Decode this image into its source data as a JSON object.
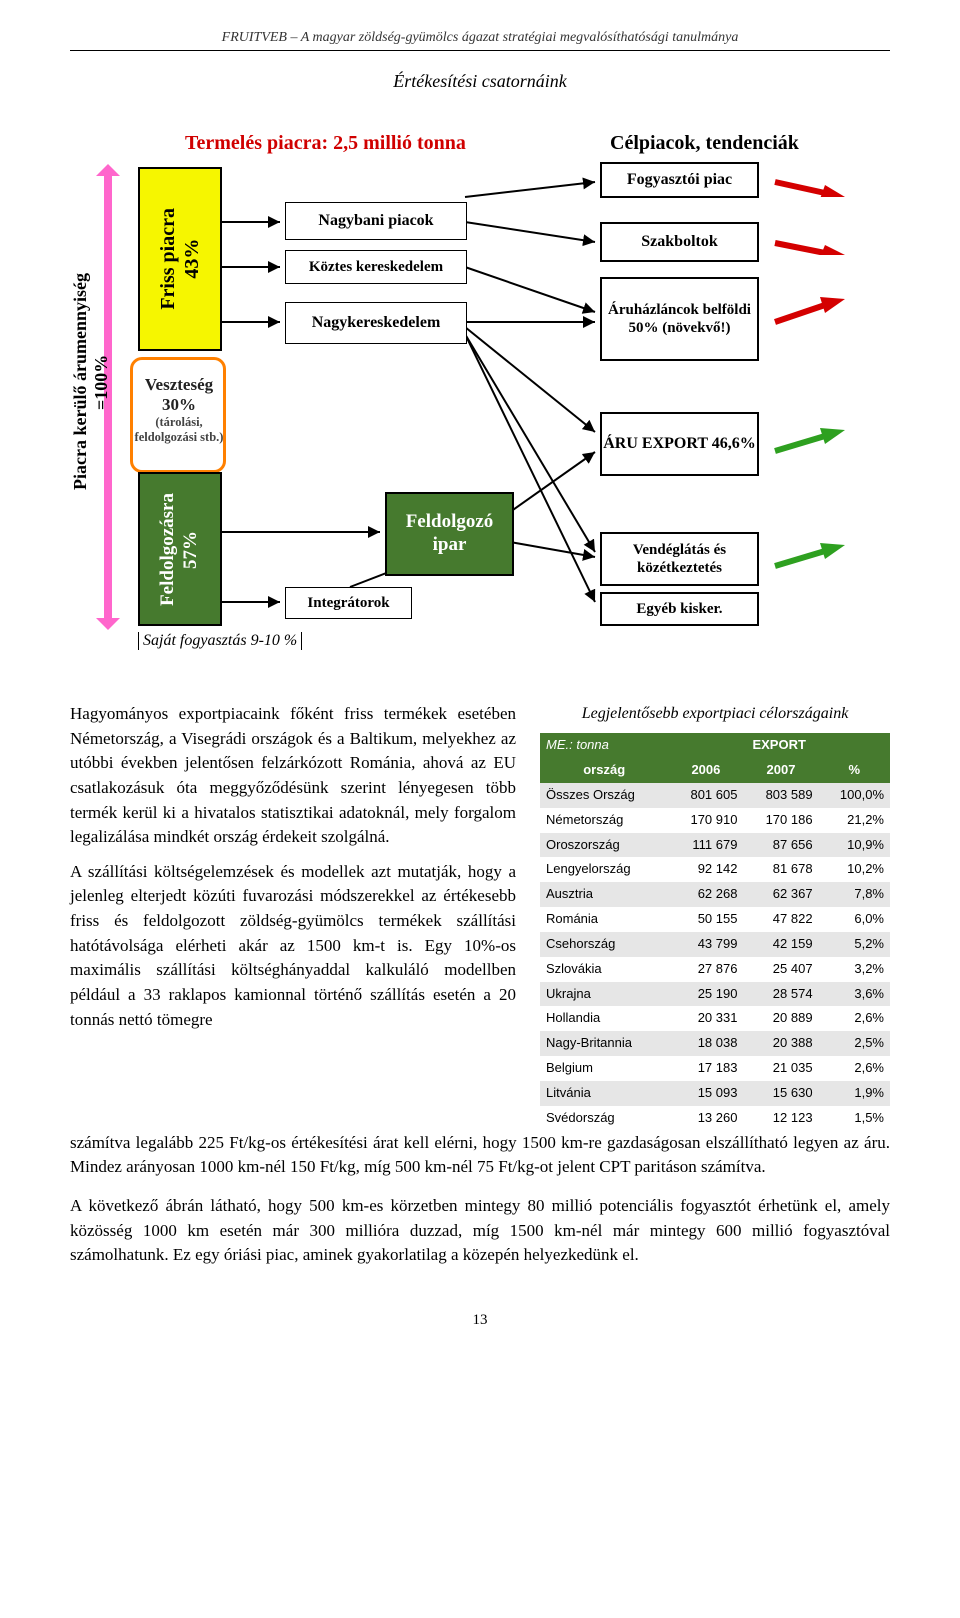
{
  "header": "FRUITVEB – A magyar zöldség-gyümölcs ágazat stratégiai megvalósíthatósági tanulmánya",
  "subtitle": "Értékesítési csatornáink",
  "diagram": {
    "prod_title": "Termelés piacra: 2,5 millió tonna",
    "cel_title": "Célpiacok, tendenciák",
    "piacra_100": "Piacra kerülő árumennyiség =100%",
    "friss_piacra": "Friss piacra",
    "friss_pct": "43%",
    "veszteseg": "Veszteség",
    "veszteseg_pct": "30%",
    "veszteseg_detail": "(tárolási, feldolgozási stb.)",
    "feldolg": "Feldolgozásra",
    "feldolg_pct": "57%",
    "sajat": "Saját fogyasztás 9-10 %",
    "nagybani": "Nagybani piacok",
    "koztes": "Köztes kereskedelem",
    "nagyker": "Nagykereskedelem",
    "feldolgozo": "Feldolgozó ipar",
    "integratorok": "Integrátorok",
    "fogyasztoi": "Fogyasztói piac",
    "szakboltok": "Szakboltok",
    "aruhaz": "Áruházláncok belföldi 50% (növekvő!)",
    "aruexport": "ÁRU EXPORT 46,6%",
    "vendeglatas": "Vendéglátás és közétkeztetés",
    "egyeb": "Egyéb kisker.",
    "arrow_colors": {
      "red": "#d40000",
      "green": "#2ea020"
    }
  },
  "export_caption": "Legjelentősebb exportpiaci célországaink",
  "export_table": {
    "unit": "ME.: tonna",
    "export_head": "EXPORT",
    "cols": [
      "ország",
      "2006",
      "2007",
      "%"
    ],
    "rows": [
      {
        "c": "Összes Ország",
        "a": "801 605",
        "b": "803 589",
        "p": "100,0%",
        "total": true
      },
      {
        "c": "Németország",
        "a": "170 910",
        "b": "170 186",
        "p": "21,2%",
        "alt": false
      },
      {
        "c": "Oroszország",
        "a": "111 679",
        "b": "87 656",
        "p": "10,9%",
        "alt": true
      },
      {
        "c": "Lengyelország",
        "a": "92 142",
        "b": "81 678",
        "p": "10,2%",
        "alt": false
      },
      {
        "c": "Ausztria",
        "a": "62 268",
        "b": "62 367",
        "p": "7,8%",
        "alt": true
      },
      {
        "c": "Románia",
        "a": "50 155",
        "b": "47 822",
        "p": "6,0%",
        "alt": false
      },
      {
        "c": "Csehország",
        "a": "43 799",
        "b": "42 159",
        "p": "5,2%",
        "alt": true
      },
      {
        "c": "Szlovákia",
        "a": "27 876",
        "b": "25 407",
        "p": "3,2%",
        "alt": false
      },
      {
        "c": "Ukrajna",
        "a": "25 190",
        "b": "28 574",
        "p": "3,6%",
        "alt": true
      },
      {
        "c": "Hollandia",
        "a": "20 331",
        "b": "20 889",
        "p": "2,6%",
        "alt": false
      },
      {
        "c": "Nagy-Britannia",
        "a": "18 038",
        "b": "20 388",
        "p": "2,5%",
        "alt": true
      },
      {
        "c": "Belgium",
        "a": "17 183",
        "b": "21 035",
        "p": "2,6%",
        "alt": false
      },
      {
        "c": "Litvánia",
        "a": "15 093",
        "b": "15 630",
        "p": "1,9%",
        "alt": true
      },
      {
        "c": "Svédország",
        "a": "13 260",
        "b": "12 123",
        "p": "1,5%",
        "alt": false
      }
    ]
  },
  "paragraphs": {
    "p1": "Hagyományos exportpiacaink főként friss termékek esetében Németország, a Visegrádi országok és a Baltikum, melyekhez az utóbbi években jelentősen felzárkózott Románia, ahová az EU csatlakozásuk óta meggyőződésünk szerint lényegesen több termék kerül ki a hivatalos statisztikai adatoknál, mely forgalom legalizálása mindkét ország érdekeit szolgálná.",
    "p2": "A szállítási költségelemzések és modellek azt mutatják, hogy a jelenleg elterjedt közúti fuvarozási módszerekkel az értékesebb friss és feldolgozott zöldség-gyümölcs termékek szállítási hatótávolsága elérheti akár az 1500 km-t is. Egy 10%-os maximális szállítási költséghányaddal kalkuláló modellben például a 33 raklapos kamionnal történő szállítás esetén a 20 tonnás nettó tömegre",
    "p3": "számítva legalább 225 Ft/kg-os értékesítési árat kell elérni, hogy 1500 km-re gazdaságosan elszállítható legyen az áru. Mindez arányosan 1000 km-nél 150 Ft/kg, míg 500 km-nél 75 Ft/kg-ot jelent CPT paritáson számítva.",
    "p4": "A következő ábrán látható, hogy 500 km-es körzetben mintegy 80 millió potenciális fogyasztót érhetünk el, amely közösség 1000 km esetén már 300 millióra duzzad, míg 1500 km-nél már mintegy 600 millió fogyasztóval számolhatunk. Ez egy óriási piac, aminek gyakorlatilag a közepén helyezkedünk el."
  },
  "page_num": "13"
}
